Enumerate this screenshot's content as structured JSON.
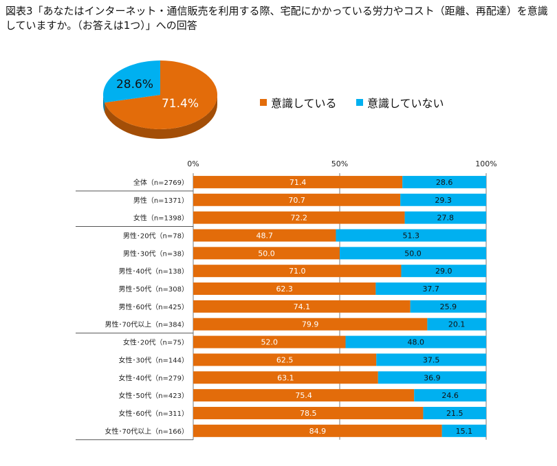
{
  "title": "図表3「あなたはインターネット・通信販売を利用する際、宅配にかかっている労力やコスト（距離、再配達）を意識していますか。（お答えは1つ）」への回答",
  "legend": [
    {
      "label": "意識している",
      "color": "#E36C0A"
    },
    {
      "label": "意識していない",
      "color": "#00B0F0"
    }
  ],
  "chart_data": [
    {
      "type": "pie",
      "categories": [
        "意識している",
        "意識していない"
      ],
      "values": [
        71.4,
        28.6
      ],
      "labels": [
        "71.4%",
        "28.6%"
      ],
      "colors": [
        "#E36C0A",
        "#00B0F0"
      ],
      "style": "3d"
    },
    {
      "type": "bar",
      "orientation": "horizontal",
      "stacked": "percent",
      "xlim": [
        0,
        100
      ],
      "xticks": [
        "0%",
        "50%",
        "100%"
      ],
      "categories": [
        "全体（n=2769）",
        "男性（n=1371）",
        "女性（n=1398）",
        "男性･20代（n=78）",
        "男性･30代（n=38）",
        "男性･40代（n=138）",
        "男性･50代（n=308）",
        "男性･60代（n=425）",
        "男性･70代以上（n=384）",
        "女性･20代（n=75）",
        "女性･30代（n=144）",
        "女性･40代（n=279）",
        "女性･50代（n=423）",
        "女性･60代（n=311）",
        "女性･70代以上（n=166）"
      ],
      "series": [
        {
          "name": "意識している",
          "color": "#E36C0A",
          "values": [
            71.4,
            70.7,
            72.2,
            48.7,
            50.0,
            71.0,
            62.3,
            74.1,
            79.9,
            52.0,
            62.5,
            63.1,
            75.4,
            78.5,
            84.9
          ],
          "labels": [
            "71.4",
            "70.7",
            "72.2",
            "48.7",
            "50.0",
            "71.0",
            "62.3",
            "74.1",
            "79.9",
            "52.0",
            "62.5",
            "63.1",
            "75.4",
            "78.5",
            "84.9"
          ]
        },
        {
          "name": "意識していない",
          "color": "#00B0F0",
          "values": [
            28.6,
            29.3,
            27.8,
            51.3,
            50.0,
            29.0,
            37.7,
            25.9,
            20.1,
            48.0,
            37.5,
            36.9,
            24.6,
            21.5,
            15.1
          ],
          "labels": [
            "28.6",
            "29.3",
            "27.8",
            "51.3",
            "50.0",
            "29.0",
            "37.7",
            "25.9",
            "20.1",
            "48.0",
            "37.5",
            "36.9",
            "24.6",
            "21.5",
            "15.1"
          ]
        }
      ]
    }
  ]
}
